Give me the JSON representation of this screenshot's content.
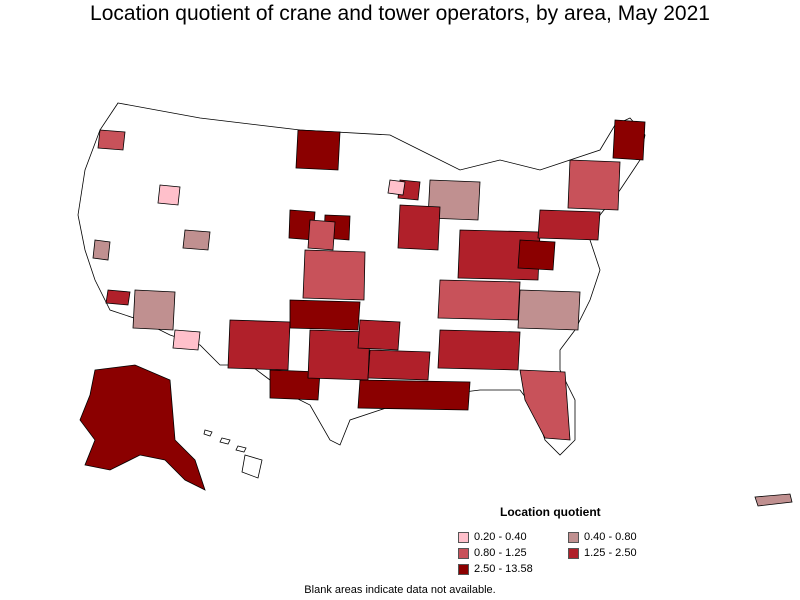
{
  "title": "Location quotient of crane and tower operators, by area, May 2021",
  "legend": {
    "title": "Location quotient",
    "items": [
      {
        "label": "0.20 - 0.40",
        "color": "#ffc0cb"
      },
      {
        "label": "0.40 - 0.80",
        "color": "#c09090"
      },
      {
        "label": "0.80 - 1.25",
        "color": "#c8525a"
      },
      {
        "label": "1.25 - 2.50",
        "color": "#b0202a"
      },
      {
        "label": "2.50 - 13.58",
        "color": "#8b0000"
      }
    ]
  },
  "note": "Blank areas indicate data not available.",
  "colors": {
    "no_data": "#ffffff",
    "border": "#000000"
  }
}
